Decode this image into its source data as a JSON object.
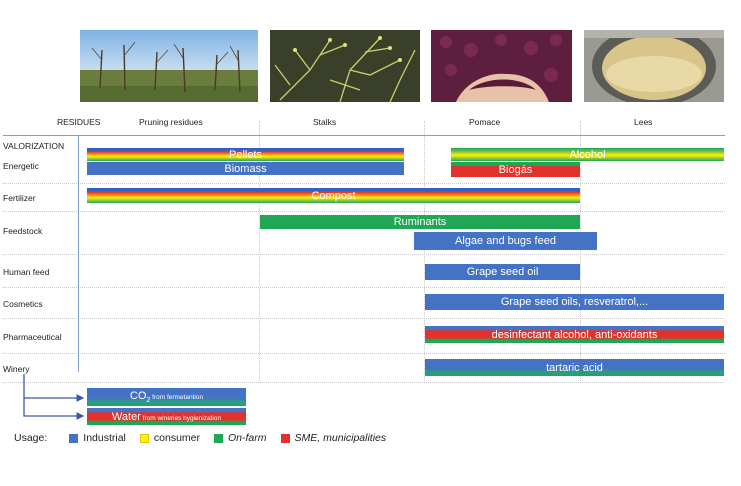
{
  "columns": {
    "residues": "RESIDUES",
    "pruning": "Pruning residues",
    "stalks": "Stalks",
    "pomace": "Pomace",
    "lees": "Lees"
  },
  "rows": {
    "valorization": "VALORIZATION",
    "energetic": "Energetic",
    "fertilizer": "Fertilizer",
    "feedstock": "Feedstock",
    "human_feed": "Human feed",
    "cosmetics": "Cosmetics",
    "pharmaceutical": "Pharmaceutical",
    "winery": "Winery"
  },
  "bars": {
    "pellets": "Pellets",
    "alcohol": "Alcohol",
    "biomass": "Biomass",
    "biogas": "Biogás",
    "compost": "Compost",
    "ruminants": "Ruminants",
    "algae": "Algae and bugs feed",
    "grape_seed_oil": "Grape seed oil",
    "grape_seed_oils": "Grape seed oils, resveratrol,...",
    "desinfectant": "desinfectant alcohol, anti-oxidants",
    "tartaric": "tartaric  acid"
  },
  "extras": {
    "co2_main": "CO",
    "co2_sub": "2",
    "co2_tail": " from fermetantion",
    "water_main": "Water",
    "water_tail": " from wineries hygienization"
  },
  "legend": {
    "title": "Usage:",
    "items": [
      {
        "label": "Industrial",
        "color": "#4472c4"
      },
      {
        "label": "consumer",
        "color": "#fff200"
      },
      {
        "label": "On-farm",
        "color": "#1fa756"
      },
      {
        "label": "SME, municipalities",
        "color": "#e5312b"
      }
    ]
  },
  "images": [
    "vineyard-pruning-photo",
    "grape-stalks-photo",
    "grape-pomace-photo",
    "wine-lees-photo"
  ]
}
